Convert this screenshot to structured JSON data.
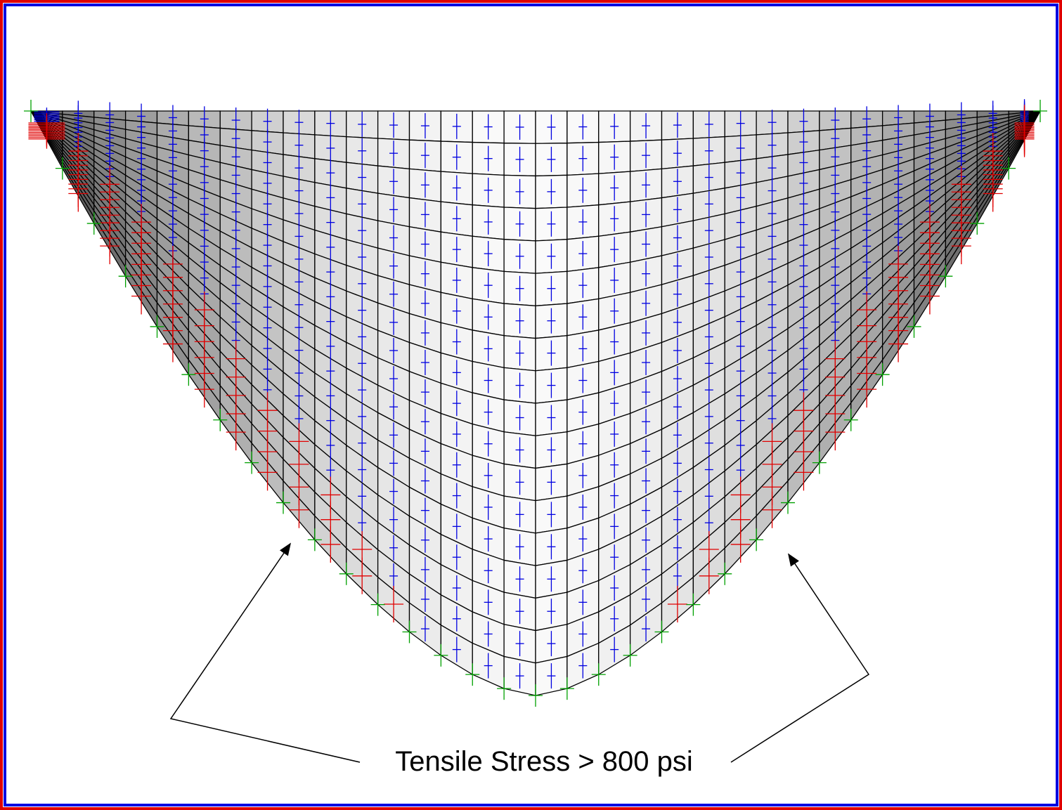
{
  "annotation": {
    "text": "Tensile Stress > 800 psi"
  }
}
